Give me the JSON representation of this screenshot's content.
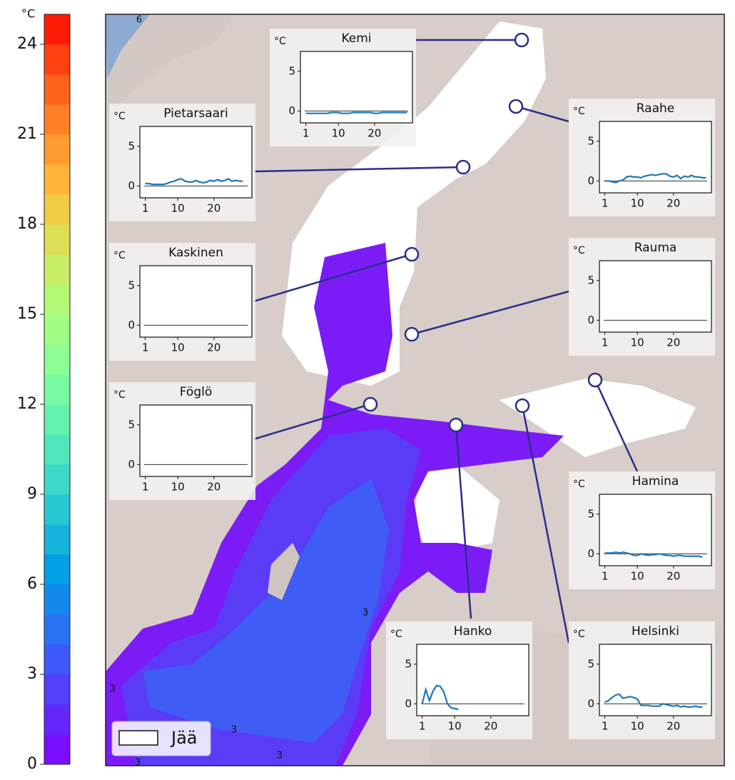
{
  "colorbar": {
    "unit": "°C",
    "lim": [
      0,
      25
    ],
    "ticks": [
      0,
      3,
      6,
      9,
      12,
      15,
      18,
      21,
      24
    ],
    "colors": [
      "#7a0cff",
      "#6526fe",
      "#513ffc",
      "#3c58f9",
      "#2872f4",
      "#1389ee",
      "#00a0e6",
      "#14b4dd",
      "#28c8d3",
      "#3cd9c8",
      "#50e6bc",
      "#64f2af",
      "#78f9a2",
      "#8cfe94",
      "#a0fe85",
      "#b4f975",
      "#c8ee65",
      "#dcde55",
      "#f0cb45",
      "#ffb53a",
      "#ff9c31",
      "#ff8026",
      "#ff621b",
      "#ff4010",
      "#ff1c06"
    ]
  },
  "legend": {
    "label": "Jää"
  },
  "contour_labels": [
    "6",
    "3",
    "3",
    "3",
    "3",
    "3"
  ],
  "inset_axes": {
    "xlim": [
      -0.5,
      30.5
    ],
    "ylim": [
      -1.5,
      7.5
    ],
    "xticks": [
      1,
      10,
      20
    ],
    "yticks": [
      0,
      5
    ],
    "hline": 0,
    "line_color": "#1f77b4"
  },
  "stations": [
    {
      "name": "Kemi",
      "unit": "°C",
      "x": [
        1,
        2,
        3,
        4,
        5,
        6,
        7,
        8,
        9,
        10,
        11,
        12,
        13,
        14,
        15,
        16,
        17,
        18,
        19,
        20,
        21,
        22,
        23,
        24,
        25,
        26,
        27,
        28,
        29
      ],
      "values": [
        -0.3,
        -0.3,
        -0.3,
        -0.3,
        -0.3,
        -0.3,
        -0.3,
        -0.2,
        -0.2,
        -0.2,
        -0.3,
        -0.3,
        -0.3,
        -0.2,
        -0.2,
        -0.2,
        -0.2,
        -0.2,
        -0.2,
        -0.3,
        -0.3,
        -0.2,
        -0.2,
        -0.2,
        -0.2,
        -0.2,
        -0.2,
        -0.2,
        -0.2
      ]
    },
    {
      "name": "Pietarsaari",
      "unit": "°C",
      "x": [
        1,
        2,
        3,
        4,
        5,
        6,
        7,
        8,
        9,
        10,
        11,
        12,
        13,
        14,
        15,
        16,
        17,
        18,
        19,
        20,
        21,
        22,
        23,
        24,
        25,
        26,
        27,
        28
      ],
      "values": [
        0.3,
        0.3,
        0.2,
        0.2,
        0.2,
        0.2,
        0.3,
        0.5,
        0.6,
        0.8,
        0.9,
        0.6,
        0.5,
        0.5,
        0.7,
        0.5,
        0.4,
        0.5,
        0.7,
        0.6,
        0.8,
        0.6,
        0.7,
        0.9,
        0.6,
        0.7,
        0.6,
        0.6
      ]
    },
    {
      "name": "Raahe",
      "unit": "°C",
      "x": [
        1,
        2,
        3,
        4,
        5,
        6,
        7,
        8,
        9,
        10,
        11,
        12,
        13,
        14,
        15,
        16,
        17,
        18,
        19,
        20,
        21,
        22,
        23,
        24,
        25,
        26,
        27,
        28,
        29
      ],
      "values": [
        0,
        0,
        -0.1,
        -0.2,
        0,
        0.1,
        0.5,
        0.6,
        0.5,
        0.5,
        0.4,
        0.6,
        0.7,
        0.8,
        0.7,
        0.8,
        0.9,
        0.9,
        0.6,
        0.5,
        0.7,
        0.3,
        0.6,
        0.5,
        0.7,
        0.5,
        0.5,
        0.4,
        0.4
      ]
    },
    {
      "name": "Kaskinen",
      "unit": "°C",
      "x": [],
      "values": []
    },
    {
      "name": "Rauma",
      "unit": "°C",
      "x": [],
      "values": []
    },
    {
      "name": "Föglö",
      "unit": "°C",
      "x": [],
      "values": []
    },
    {
      "name": "Hamina",
      "unit": "°C",
      "x": [
        1,
        2,
        3,
        4,
        5,
        6,
        7,
        8,
        9,
        10,
        11,
        12,
        13,
        14,
        15,
        16,
        17,
        18,
        19,
        20,
        21,
        22,
        23,
        24,
        25,
        26,
        27,
        28
      ],
      "values": [
        0.1,
        0.1,
        0.1,
        0.2,
        0.1,
        0.2,
        0.1,
        0,
        -0.2,
        -0.2,
        0,
        -0.1,
        -0.2,
        -0.1,
        -0.1,
        0,
        -0.1,
        -0.2,
        -0.2,
        -0.3,
        -0.2,
        -0.2,
        -0.3,
        -0.3,
        -0.3,
        -0.3,
        -0.3,
        -0.4
      ]
    },
    {
      "name": "Hanko",
      "unit": "°C",
      "x": [
        1,
        2,
        3,
        4,
        5,
        6,
        7,
        8,
        9,
        10,
        11
      ],
      "values": [
        0,
        1.8,
        0.4,
        1.6,
        2.3,
        2.2,
        1.5,
        0,
        -0.5,
        -0.6,
        -0.7
      ]
    },
    {
      "name": "Helsinki",
      "unit": "°C",
      "x": [
        1,
        2,
        3,
        4,
        5,
        6,
        7,
        8,
        9,
        10,
        11,
        12,
        13,
        14,
        15,
        16,
        17,
        18,
        19,
        20,
        21,
        22,
        23,
        24,
        25,
        26,
        27,
        28
      ],
      "values": [
        0.2,
        0.4,
        0.8,
        1.1,
        1.2,
        0.7,
        0.8,
        0.9,
        0.8,
        0.6,
        -0.2,
        -0.2,
        -0.2,
        -0.3,
        -0.3,
        -0.3,
        0,
        -0.1,
        -0.2,
        -0.3,
        -0.2,
        -0.4,
        -0.3,
        -0.4,
        -0.4,
        -0.3,
        -0.4,
        -0.4
      ]
    }
  ]
}
